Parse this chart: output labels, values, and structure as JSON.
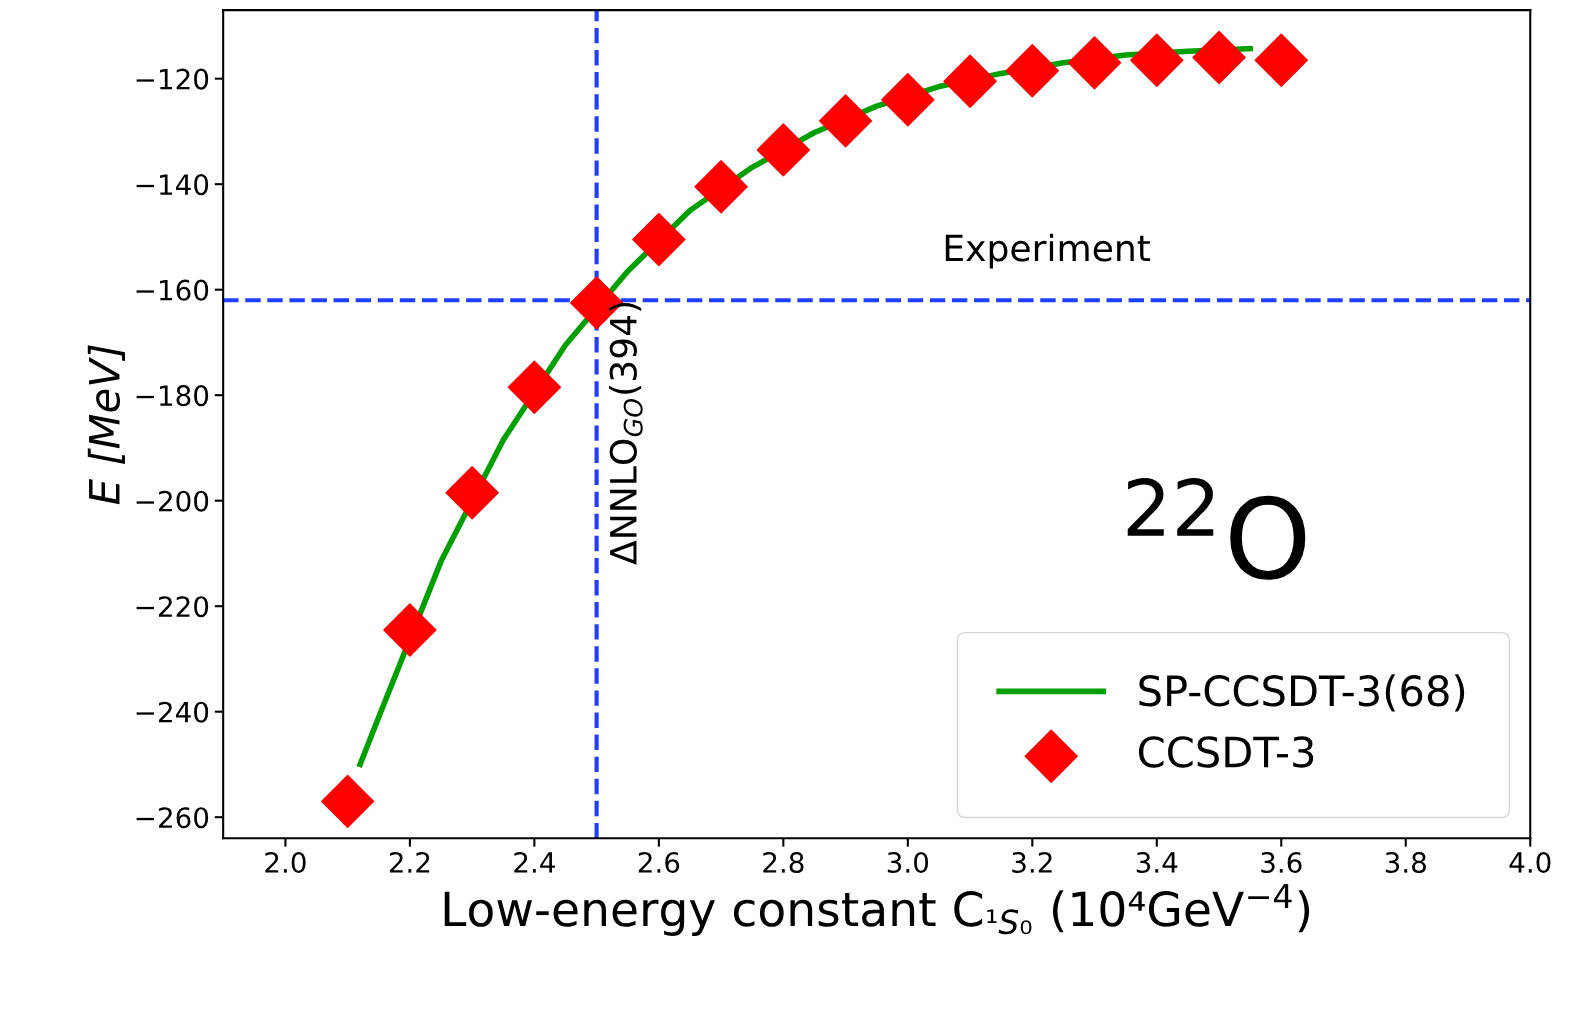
{
  "chart_data": {
    "type": "line",
    "xlabel": "Low-energy constant C$_{¹S₀}$ (10⁴GeV$^{−4}$)",
    "ylabel": "E [MeV]",
    "xlim": [
      1.9,
      4.0
    ],
    "xticks": [
      {
        "value": 2.0,
        "label": "2.0"
      },
      {
        "value": 2.2,
        "label": "2.2"
      },
      {
        "value": 2.4,
        "label": "2.4"
      },
      {
        "value": 2.6,
        "label": "2.6"
      },
      {
        "value": 2.8,
        "label": "2.8"
      },
      {
        "value": 3.0,
        "label": "3.0"
      },
      {
        "value": 3.2,
        "label": "3.2"
      },
      {
        "value": 3.4,
        "label": "3.4"
      },
      {
        "value": 3.6,
        "label": "3.6"
      },
      {
        "value": 3.8,
        "label": "3.8"
      },
      {
        "value": 4.0,
        "label": "4.0"
      }
    ],
    "ylim": [
      -264,
      -107
    ],
    "yticks": [
      {
        "value": -260,
        "label": "−260"
      },
      {
        "value": -240,
        "label": "−240"
      },
      {
        "value": -220,
        "label": "−220"
      },
      {
        "value": -200,
        "label": "−200"
      },
      {
        "value": -180,
        "label": "−180"
      },
      {
        "value": -160,
        "label": "−160"
      },
      {
        "value": -140,
        "label": "−140"
      },
      {
        "value": -120,
        "label": "−120"
      }
    ],
    "x": [
      2.1,
      2.2,
      2.3,
      2.4,
      2.5,
      2.6,
      2.7,
      2.8,
      2.9,
      3.0,
      3.1,
      3.2,
      3.3,
      3.4,
      3.5,
      3.6
    ],
    "series": [
      {
        "name": "SP-CCSDT-3(68)",
        "marker": "none",
        "line_style": "solid",
        "color": "#00a000",
        "x": [
          2.12,
          2.15,
          2.25,
          2.35,
          2.45,
          2.55,
          2.65,
          2.75,
          2.85,
          2.95,
          3.05,
          3.15,
          3.25,
          3.35,
          3.45,
          3.55
        ],
        "values": [
          -250,
          -241,
          -211.5,
          -188.5,
          -170.5,
          -156.5,
          -145,
          -136.8,
          -130.2,
          -125.2,
          -121.5,
          -119,
          -117,
          -115.5,
          -114.8,
          -114.3
        ]
      },
      {
        "name": "CCSDT-3",
        "type": "scatter",
        "marker": "diamond",
        "color": "#ff0000",
        "values": [
          -257,
          -224.5,
          -198.5,
          -178.5,
          -162.5,
          -150.5,
          -140.5,
          -133.5,
          -128,
          -124,
          -120.5,
          -118.5,
          -117,
          -116.5,
          -116,
          -116.5
        ]
      }
    ],
    "ref_lines": [
      {
        "axis": "x",
        "value": 2.5,
        "label": "ΔNNLO$_{GO}$(394)",
        "color": "#1f3fff",
        "line_style": "dashed"
      },
      {
        "axis": "y",
        "value": -162,
        "label": "Experiment",
        "color": "#1f3fff",
        "line_style": "dashed"
      }
    ],
    "annotations": [
      "$^{22}$O"
    ],
    "legend": "bottom right",
    "grid": false
  }
}
